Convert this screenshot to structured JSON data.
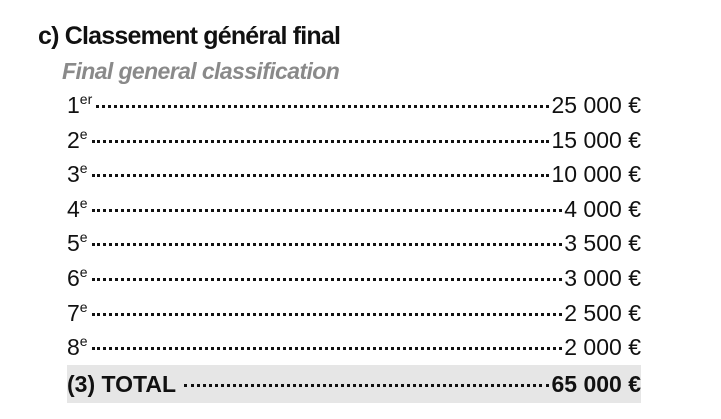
{
  "header": {
    "title": "c) Classement général final",
    "subtitle": "Final general classification"
  },
  "table": {
    "rows": [
      {
        "rank": "1",
        "suffix": "er",
        "amount": "25 000 €"
      },
      {
        "rank": "2",
        "suffix": "e",
        "amount": "15 000 €"
      },
      {
        "rank": "3",
        "suffix": "e",
        "amount": "10 000 €"
      },
      {
        "rank": "4",
        "suffix": "e",
        "amount": "4 000 €"
      },
      {
        "rank": "5",
        "suffix": "e",
        "amount": "3 500 €"
      },
      {
        "rank": "6",
        "suffix": "e",
        "amount": "3 000 €"
      },
      {
        "rank": "7",
        "suffix": "e",
        "amount": "2 500 €"
      },
      {
        "rank": "8",
        "suffix": "e",
        "amount": "2 000 €"
      }
    ],
    "total": {
      "label": "(3) TOTAL",
      "amount": "65 000 €"
    }
  }
}
